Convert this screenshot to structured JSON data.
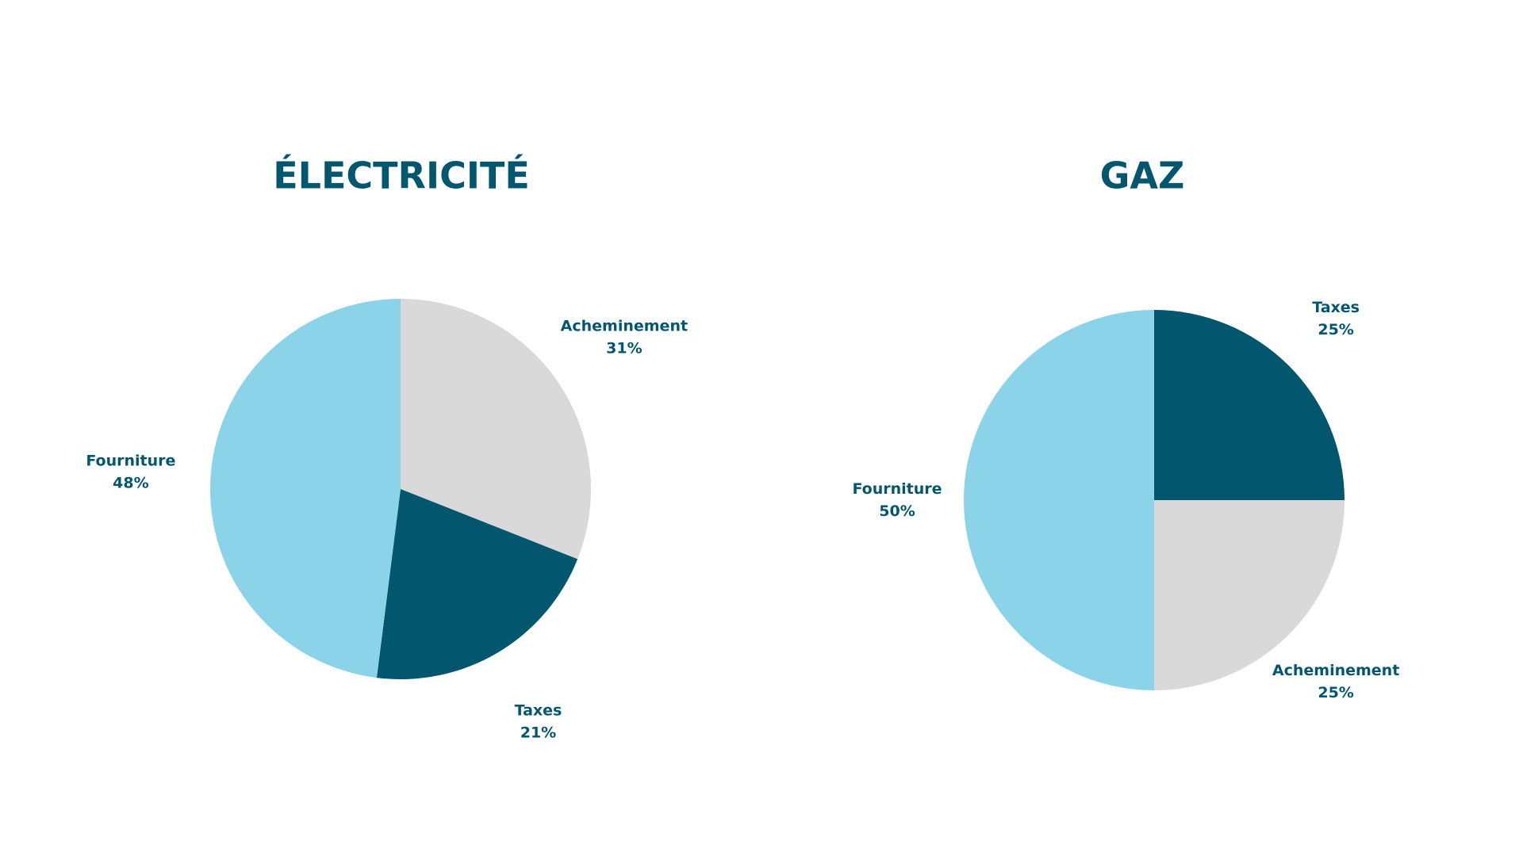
{
  "chart_data": [
    {
      "type": "pie",
      "title": "ÉLECTRICITÉ",
      "categories": [
        "Acheminement",
        "Taxes",
        "Fourniture"
      ],
      "values": [
        31,
        21,
        48
      ],
      "value_labels": [
        "31%",
        "21%",
        "48%"
      ],
      "colors": [
        "#d9d9d9",
        "#02566e",
        "#8bd3e8"
      ]
    },
    {
      "type": "pie",
      "title": "GAZ",
      "categories": [
        "Taxes",
        "Acheminement",
        "Fourniture"
      ],
      "values": [
        25,
        25,
        50
      ],
      "value_labels": [
        "25%",
        "25%",
        "50%"
      ],
      "colors": [
        "#02566e",
        "#d9d9d9",
        "#8bd3e8"
      ]
    }
  ]
}
